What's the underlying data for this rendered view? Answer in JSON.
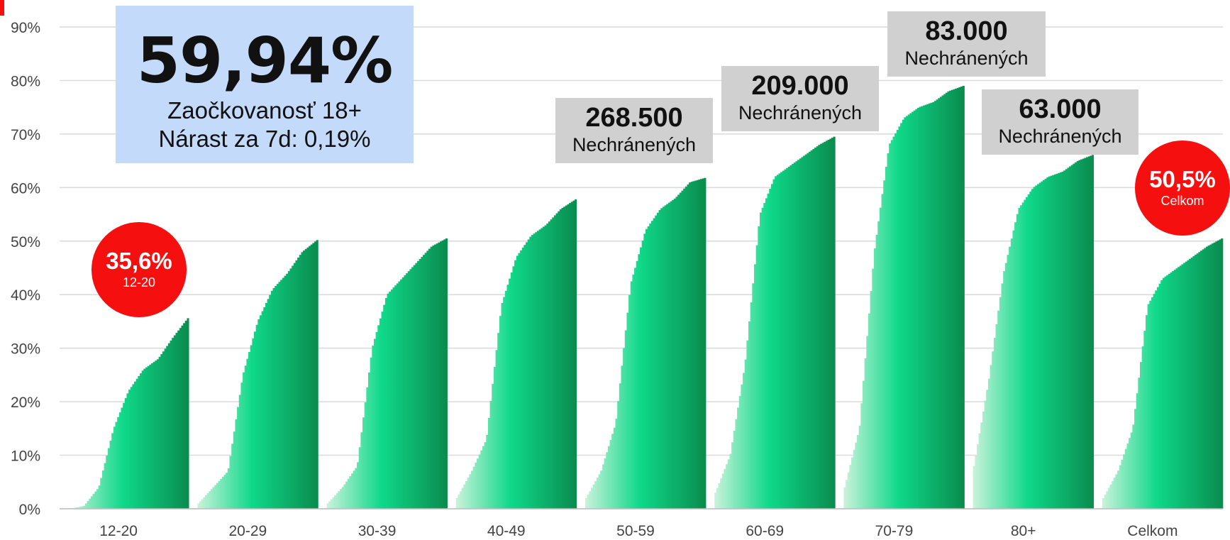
{
  "chart_data": {
    "type": "bar",
    "categories": [
      "12-20",
      "20-29",
      "30-39",
      "40-49",
      "50-59",
      "60-69",
      "70-79",
      "80+",
      "Celkom"
    ],
    "series": [
      {
        "values": [
          0,
          0.5,
          4,
          15,
          22,
          26,
          28,
          32,
          35.6
        ]
      },
      {
        "values": [
          1,
          4,
          7,
          25,
          35,
          41,
          44,
          48,
          50.2
        ]
      },
      {
        "values": [
          1,
          4,
          8,
          30,
          40,
          43,
          46,
          49,
          50.5
        ]
      },
      {
        "values": [
          2,
          7,
          13,
          38,
          47,
          51,
          53,
          56,
          57.8
        ]
      },
      {
        "values": [
          2,
          7,
          16,
          42,
          52,
          56,
          58,
          61,
          61.8
        ]
      },
      {
        "values": [
          3,
          10,
          27,
          55,
          62,
          64,
          66,
          68,
          69.5
        ]
      },
      {
        "values": [
          4,
          15,
          48,
          68,
          73,
          75,
          76,
          78,
          79
        ]
      },
      {
        "values": [
          8,
          24,
          44,
          56,
          60,
          62,
          63,
          65,
          66.1
        ]
      },
      {
        "values": [
          2,
          7,
          15,
          38,
          43,
          45,
          47,
          49,
          50.5
        ]
      }
    ],
    "ylim": [
      0,
      90
    ],
    "yticks": [
      "0%",
      "10%",
      "20%",
      "30%",
      "40%",
      "50%",
      "60%",
      "70%",
      "80%",
      "90%"
    ],
    "grid": true,
    "colors": {
      "light": "#c7f2da",
      "mid": "#0fd98a",
      "dark": "#0a8d4f",
      "grid": "#d9d9d9",
      "accent": "#f50f0f"
    }
  },
  "headline": {
    "value": "59,94%",
    "line1": "Zaočkovanosť 18+",
    "line2": "Nárast za 7d: 0,19%"
  },
  "callouts": [
    {
      "number": "268.500",
      "label": "Nechránených"
    },
    {
      "number": "209.000",
      "label": "Nechránených"
    },
    {
      "number": "83.000",
      "label": "Nechránených"
    },
    {
      "number": "63.000",
      "label": "Nechránených"
    }
  ],
  "badges": [
    {
      "value": "35,6%",
      "caption": "12-20"
    },
    {
      "value": "50,5%",
      "caption": "Celkom"
    }
  ]
}
